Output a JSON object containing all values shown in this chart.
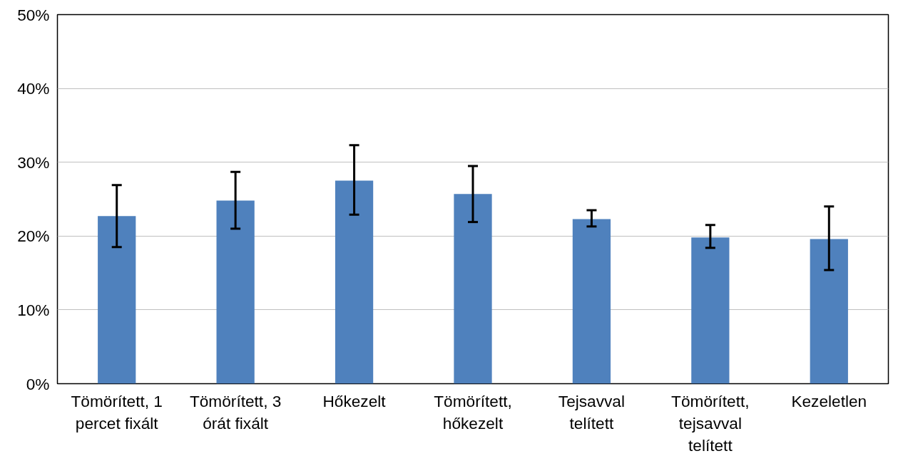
{
  "chart_data": {
    "type": "bar",
    "categories": [
      "Tömörített, 1 percet fixált",
      "Tömörített, 3 órát fixált",
      "Hőkezelt",
      "Tömörített, hőkezelt",
      "Tejsavval telített",
      "Tömörített, tejsavval telített",
      "Kezeletlen"
    ],
    "values": [
      22.7,
      24.8,
      27.5,
      25.7,
      22.3,
      19.8,
      19.6
    ],
    "errors": [
      [
        18.5,
        26.9
      ],
      [
        21.0,
        28.7
      ],
      [
        22.9,
        32.3
      ],
      [
        21.9,
        29.5
      ],
      [
        21.3,
        23.5
      ],
      [
        18.4,
        21.5
      ],
      [
        15.4,
        24.0
      ]
    ],
    "color": "#4f81bd",
    "ylim": [
      0,
      50
    ],
    "yticks": [
      {
        "value": 0,
        "label": "0%"
      },
      {
        "value": 10,
        "label": "10%"
      },
      {
        "value": 20,
        "label": "20%"
      },
      {
        "value": 30,
        "label": "30%"
      },
      {
        "value": 40,
        "label": "40%"
      },
      {
        "value": 50,
        "label": "50%"
      }
    ],
    "grid": "y"
  }
}
